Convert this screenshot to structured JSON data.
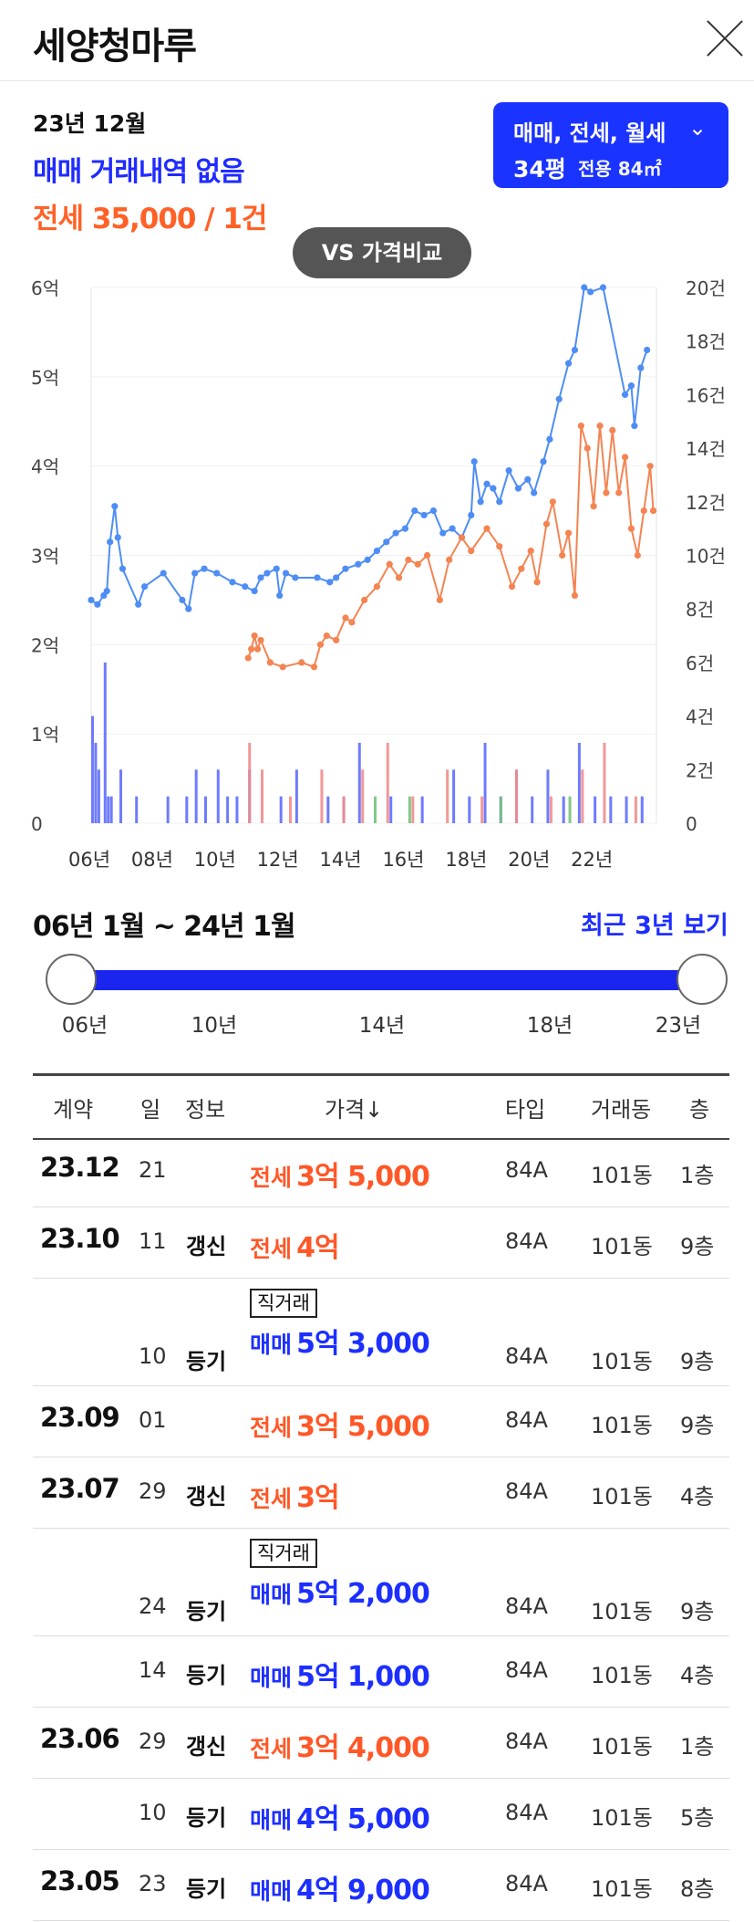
{
  "header": {
    "title": "세양청마루"
  },
  "summary": {
    "date": "23년 12월",
    "sale": "매매 거래내역 없음",
    "jeonse": "전세 35,000 / 1건",
    "filter_types": "매매, 전세, 월세",
    "filter_area": "34평",
    "filter_exclusive": "전용 84㎡",
    "vs_button": "VS 가격비교"
  },
  "chart_data": {
    "type": "line",
    "x_ticks": [
      "06년",
      "08년",
      "10년",
      "12년",
      "14년",
      "16년",
      "18년",
      "20년",
      "22년"
    ],
    "left_ticks": [
      "6억",
      "5억",
      "4억",
      "3억",
      "2억",
      "1억",
      "0"
    ],
    "right_ticks": [
      "20건",
      "18건",
      "16건",
      "14건",
      "12건",
      "10건",
      "8건",
      "6건",
      "4건",
      "2건",
      "0"
    ],
    "left_ylim": [
      0,
      6
    ],
    "right_ylim": [
      0,
      20
    ],
    "series": [
      {
        "name": "매매",
        "color": "#4e8df5",
        "points": [
          [
            2006.0,
            2.5
          ],
          [
            2006.2,
            2.45
          ],
          [
            2006.4,
            2.55
          ],
          [
            2006.5,
            2.6
          ],
          [
            2006.6,
            3.15
          ],
          [
            2006.75,
            3.55
          ],
          [
            2006.85,
            3.2
          ],
          [
            2007.0,
            2.85
          ],
          [
            2007.5,
            2.45
          ],
          [
            2007.7,
            2.65
          ],
          [
            2008.3,
            2.8
          ],
          [
            2008.9,
            2.5
          ],
          [
            2009.1,
            2.4
          ],
          [
            2009.3,
            2.8
          ],
          [
            2009.6,
            2.85
          ],
          [
            2010.0,
            2.8
          ],
          [
            2010.5,
            2.7
          ],
          [
            2010.9,
            2.65
          ],
          [
            2011.2,
            2.6
          ],
          [
            2011.4,
            2.75
          ],
          [
            2011.6,
            2.8
          ],
          [
            2011.9,
            2.85
          ],
          [
            2012.0,
            2.55
          ],
          [
            2012.2,
            2.8
          ],
          [
            2012.5,
            2.75
          ],
          [
            2013.2,
            2.75
          ],
          [
            2013.6,
            2.7
          ],
          [
            2013.8,
            2.75
          ],
          [
            2014.1,
            2.85
          ],
          [
            2014.5,
            2.9
          ],
          [
            2014.8,
            2.95
          ],
          [
            2015.1,
            3.05
          ],
          [
            2015.4,
            3.15
          ],
          [
            2015.7,
            3.25
          ],
          [
            2016.0,
            3.3
          ],
          [
            2016.3,
            3.5
          ],
          [
            2016.6,
            3.45
          ],
          [
            2016.9,
            3.5
          ],
          [
            2017.2,
            3.25
          ],
          [
            2017.5,
            3.3
          ],
          [
            2017.8,
            3.2
          ],
          [
            2018.1,
            3.45
          ],
          [
            2018.2,
            4.05
          ],
          [
            2018.4,
            3.6
          ],
          [
            2018.6,
            3.8
          ],
          [
            2018.8,
            3.75
          ],
          [
            2019.0,
            3.6
          ],
          [
            2019.3,
            3.95
          ],
          [
            2019.6,
            3.75
          ],
          [
            2019.9,
            3.85
          ],
          [
            2020.1,
            3.7
          ],
          [
            2020.4,
            4.05
          ],
          [
            2020.6,
            4.3
          ],
          [
            2020.9,
            4.75
          ],
          [
            2021.2,
            5.15
          ],
          [
            2021.4,
            5.3
          ],
          [
            2021.7,
            6.0
          ],
          [
            2021.9,
            5.95
          ],
          [
            2022.3,
            6.0
          ],
          [
            2023.0,
            4.8
          ],
          [
            2023.2,
            4.9
          ],
          [
            2023.3,
            4.45
          ],
          [
            2023.5,
            5.1
          ],
          [
            2023.7,
            5.3
          ]
        ]
      },
      {
        "name": "전세",
        "color": "#f48452",
        "points": [
          [
            2011.0,
            1.85
          ],
          [
            2011.1,
            1.95
          ],
          [
            2011.2,
            2.1
          ],
          [
            2011.3,
            1.95
          ],
          [
            2011.4,
            2.05
          ],
          [
            2011.7,
            1.8
          ],
          [
            2012.1,
            1.75
          ],
          [
            2012.7,
            1.8
          ],
          [
            2013.1,
            1.75
          ],
          [
            2013.3,
            2.0
          ],
          [
            2013.5,
            2.1
          ],
          [
            2013.8,
            2.05
          ],
          [
            2014.1,
            2.3
          ],
          [
            2014.3,
            2.25
          ],
          [
            2014.7,
            2.5
          ],
          [
            2015.1,
            2.65
          ],
          [
            2015.5,
            2.9
          ],
          [
            2015.8,
            2.75
          ],
          [
            2016.1,
            2.95
          ],
          [
            2016.4,
            2.9
          ],
          [
            2016.7,
            3.0
          ],
          [
            2017.1,
            2.5
          ],
          [
            2017.4,
            2.95
          ],
          [
            2017.8,
            3.2
          ],
          [
            2018.1,
            3.05
          ],
          [
            2018.6,
            3.3
          ],
          [
            2019.0,
            3.1
          ],
          [
            2019.4,
            2.65
          ],
          [
            2019.7,
            2.85
          ],
          [
            2020.0,
            3.05
          ],
          [
            2020.2,
            2.7
          ],
          [
            2020.5,
            3.35
          ],
          [
            2020.7,
            3.6
          ],
          [
            2021.0,
            3.0
          ],
          [
            2021.2,
            3.25
          ],
          [
            2021.4,
            2.55
          ],
          [
            2021.6,
            4.45
          ],
          [
            2021.8,
            4.2
          ],
          [
            2022.0,
            3.55
          ],
          [
            2022.2,
            4.45
          ],
          [
            2022.4,
            3.7
          ],
          [
            2022.6,
            4.4
          ],
          [
            2022.8,
            3.7
          ],
          [
            2023.0,
            4.1
          ],
          [
            2023.2,
            3.3
          ],
          [
            2023.4,
            3.0
          ],
          [
            2023.6,
            3.5
          ],
          [
            2023.8,
            4.0
          ],
          [
            2023.9,
            3.5
          ]
        ]
      }
    ],
    "bars": [
      {
        "color": "#5e6dfd",
        "x": [
          2006.0,
          2006.1,
          2006.2,
          2006.4,
          2006.5,
          2006.6,
          2006.9,
          2007.4,
          2008.4,
          2009.0,
          2009.3,
          2009.6,
          2010.0,
          2010.3,
          2010.6,
          2011.0,
          2012.0,
          2012.5,
          2013.5,
          2014.0,
          2014.5,
          2015.5,
          2016.5,
          2017.5,
          2018.0,
          2018.5,
          2019.0,
          2019.5,
          2020.0,
          2020.5,
          2021.0,
          2021.5,
          2022.0,
          2022.5,
          2023.0,
          2023.5
        ],
        "count": [
          4,
          3,
          2,
          6,
          1,
          1,
          2,
          1,
          1,
          1,
          2,
          1,
          2,
          1,
          1,
          2,
          1,
          2,
          1,
          1,
          3,
          1,
          1,
          2,
          1,
          3,
          1,
          2,
          1,
          2,
          1,
          3,
          1,
          1,
          1,
          1
        ]
      },
      {
        "color": "#f28c8c",
        "x": [
          2011.0,
          2011.4,
          2012.3,
          2013.3,
          2014.0,
          2014.6,
          2015.4,
          2016.2,
          2017.3,
          2018.4,
          2019.5,
          2020.6,
          2021.6,
          2022.3,
          2023.3
        ],
        "count": [
          3,
          2,
          1,
          2,
          1,
          2,
          3,
          1,
          2,
          1,
          2,
          1,
          2,
          3,
          1
        ]
      },
      {
        "color": "#73c27a",
        "x": [
          2015.0,
          2016.1,
          2019.0,
          2021.2
        ],
        "count": [
          1,
          1,
          1,
          1
        ]
      }
    ]
  },
  "period": {
    "label": "06년 1월 ~ 24년 1월",
    "recent_button": "최근 3년 보기",
    "start_value": 0.0,
    "end_value": 1.0,
    "slider_labels": [
      "06년",
      "10년",
      "14년",
      "18년",
      "23년"
    ]
  },
  "table": {
    "headers": [
      "계약",
      "일",
      "정보",
      "가격↓",
      "타입",
      "거래동",
      "층"
    ],
    "rows": [
      {
        "month": "23.12",
        "day": "21",
        "info": "",
        "kind": "전세",
        "amount": "3억 5,000",
        "type": "84A",
        "dong": "101동",
        "floor": "1층",
        "direct": ""
      },
      {
        "month": "23.10",
        "day": "11",
        "info": "갱신",
        "kind": "전세",
        "amount": "4억",
        "type": "84A",
        "dong": "101동",
        "floor": "9층",
        "direct": ""
      },
      {
        "month": "",
        "day": "10",
        "info": "등기",
        "kind": "매매",
        "amount": "5억 3,000",
        "type": "84A",
        "dong": "101동",
        "floor": "9층",
        "direct": "직거래"
      },
      {
        "month": "23.09",
        "day": "01",
        "info": "",
        "kind": "전세",
        "amount": "3억 5,000",
        "type": "84A",
        "dong": "101동",
        "floor": "9층",
        "direct": ""
      },
      {
        "month": "23.07",
        "day": "29",
        "info": "갱신",
        "kind": "전세",
        "amount": "3억",
        "type": "84A",
        "dong": "101동",
        "floor": "4층",
        "direct": ""
      },
      {
        "month": "",
        "day": "24",
        "info": "등기",
        "kind": "매매",
        "amount": "5억 2,000",
        "type": "84A",
        "dong": "101동",
        "floor": "9층",
        "direct": "직거래"
      },
      {
        "month": "",
        "day": "14",
        "info": "등기",
        "kind": "매매",
        "amount": "5억 1,000",
        "type": "84A",
        "dong": "101동",
        "floor": "4층",
        "direct": ""
      },
      {
        "month": "23.06",
        "day": "29",
        "info": "갱신",
        "kind": "전세",
        "amount": "3억 4,000",
        "type": "84A",
        "dong": "101동",
        "floor": "1층",
        "direct": ""
      },
      {
        "month": "",
        "day": "10",
        "info": "등기",
        "kind": "매매",
        "amount": "4억 5,000",
        "type": "84A",
        "dong": "101동",
        "floor": "5층",
        "direct": ""
      },
      {
        "month": "23.05",
        "day": "23",
        "info": "등기",
        "kind": "매매",
        "amount": "4억 9,000",
        "type": "84A",
        "dong": "101동",
        "floor": "8층",
        "direct": ""
      }
    ]
  }
}
